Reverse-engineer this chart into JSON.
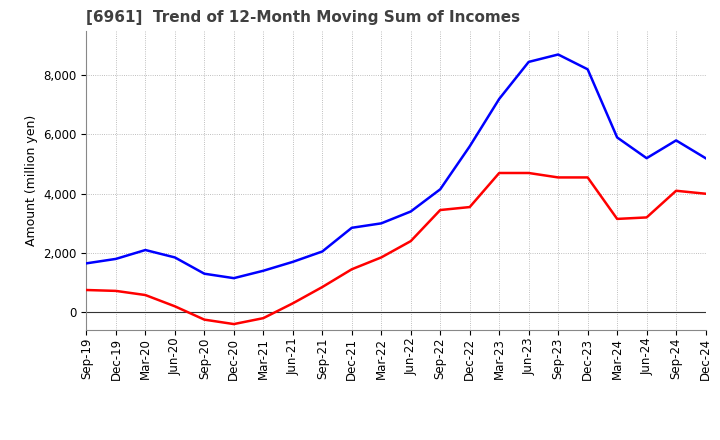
{
  "title": "[6961]  Trend of 12-Month Moving Sum of Incomes",
  "ylabel": "Amount (million yen)",
  "background_color": "#ffffff",
  "plot_background_color": "#ffffff",
  "grid_color": "#aaaaaa",
  "x_labels": [
    "Sep-19",
    "Dec-19",
    "Mar-20",
    "Jun-20",
    "Sep-20",
    "Dec-20",
    "Mar-21",
    "Jun-21",
    "Sep-21",
    "Dec-21",
    "Mar-22",
    "Jun-22",
    "Sep-22",
    "Dec-22",
    "Mar-23",
    "Jun-23",
    "Sep-23",
    "Dec-23",
    "Mar-24",
    "Jun-24",
    "Sep-24",
    "Dec-24"
  ],
  "ordinary_income": [
    1650,
    1800,
    2100,
    1850,
    1300,
    1150,
    1400,
    1700,
    2050,
    2850,
    3000,
    3400,
    4150,
    5600,
    7200,
    8450,
    8700,
    8200,
    5900,
    5200,
    5800,
    5200
  ],
  "net_income": [
    750,
    720,
    580,
    200,
    -250,
    -400,
    -200,
    300,
    850,
    1450,
    1850,
    2400,
    3450,
    3550,
    4700,
    4700,
    4550,
    4550,
    3150,
    3200,
    4100,
    4000
  ],
  "ordinary_color": "#0000ff",
  "net_color": "#ff0000",
  "ylim_min": -600,
  "ylim_max": 9500,
  "yticks": [
    0,
    2000,
    4000,
    6000,
    8000
  ],
  "title_fontsize": 11,
  "axis_fontsize": 9,
  "tick_fontsize": 8.5,
  "linewidth": 1.8
}
